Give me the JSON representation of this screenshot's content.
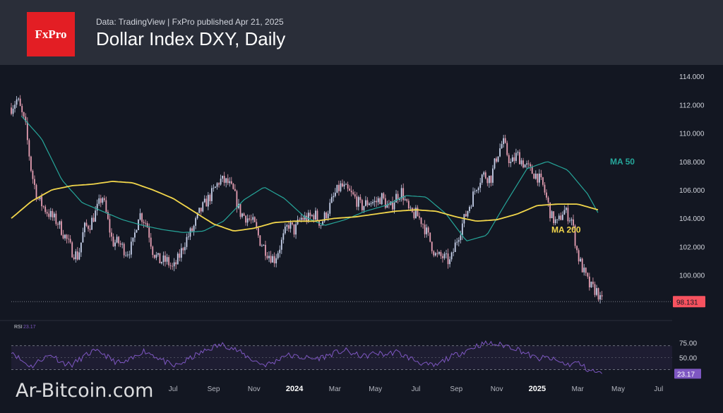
{
  "header": {
    "logo_text": "FxPro",
    "subtitle": "Data: TradingView  |  FxPro published Apr 21, 2025",
    "title": "Dollar Index DXY, Daily"
  },
  "watermark": "Ar-Bitcoin.com",
  "colors": {
    "background": "#131722",
    "header": "#2a2e39",
    "logo_red": "#e31e24",
    "candle_up": "#c8d2ec",
    "candle_down": "#e8a0b4",
    "ma50": "#26a69a",
    "ma200": "#f2d64b",
    "rsi": "#7e57c2",
    "last_price": "#f7525f"
  },
  "chart_data": [
    {
      "type": "line",
      "title": "Dollar Index DXY, Daily",
      "xlabel": "",
      "ylabel": "",
      "ylim": [
        97.5,
        114.5
      ],
      "y_ticks": [
        100.0,
        102.0,
        104.0,
        106.0,
        108.0,
        110.0,
        112.0,
        114.0
      ],
      "y_tick_labels": [
        "100.000",
        "102.000",
        "104.000",
        "106.000",
        "108.000",
        "110.000",
        "112.000",
        "114.000"
      ],
      "x_tick_labels": [
        "Jul",
        "Sep",
        "Nov",
        "2024",
        "Mar",
        "May",
        "Jul",
        "Sep",
        "Nov",
        "2025",
        "Mar",
        "May",
        "Jul"
      ],
      "x_tick_positions": [
        8.0,
        10.0,
        12.0,
        14.0,
        16.0,
        18.0,
        20.0,
        22.0,
        24.0,
        26.0,
        28.0,
        30.0,
        32.0
      ],
      "x_tick_bold": [
        "2024",
        "2025"
      ],
      "xlim": [
        0.0,
        32.6
      ],
      "grid": false,
      "last_price": 98.131,
      "last_price_label": "98.131",
      "series": [
        {
          "name": "DXY",
          "style": "candles",
          "x": [
            0.0,
            0.3,
            0.7,
            1.0,
            1.3,
            1.7,
            2.0,
            2.3,
            2.7,
            3.0,
            3.3,
            3.6,
            3.9,
            4.2,
            4.5,
            4.8,
            5.0,
            5.3,
            5.7,
            6.0,
            6.3,
            6.7,
            7.0,
            7.3,
            7.7,
            8.0,
            8.3,
            8.6,
            9.0,
            9.3,
            9.7,
            10.0,
            10.3,
            10.7,
            11.0,
            11.3,
            11.7,
            12.0,
            12.3,
            12.7,
            13.0,
            13.3,
            13.7,
            14.0,
            14.3,
            14.7,
            15.0,
            15.3,
            15.7,
            16.0,
            16.3,
            16.7,
            17.0,
            17.3,
            17.7,
            18.0,
            18.3,
            18.7,
            19.0,
            19.3,
            19.7,
            20.0,
            20.3,
            20.7,
            21.0,
            21.3,
            21.7,
            22.0,
            22.3,
            22.7,
            23.0,
            23.3,
            23.7,
            24.0,
            24.3,
            24.7,
            25.0,
            25.3,
            25.7,
            26.0,
            26.3,
            26.7,
            27.0,
            27.3,
            27.7,
            28.0,
            28.3,
            28.6,
            29.0,
            29.1,
            29.2
          ],
          "values": [
            111.8,
            112.4,
            110.5,
            107.2,
            105.4,
            104.6,
            104.1,
            103.7,
            102.6,
            101.7,
            101.3,
            103.3,
            103.6,
            104.5,
            105.6,
            103.6,
            102.3,
            102.3,
            101.6,
            102.1,
            104.4,
            103.6,
            101.7,
            101.0,
            101.0,
            100.4,
            101.3,
            102.4,
            103.3,
            104.4,
            105.3,
            105.9,
            106.7,
            106.5,
            105.8,
            104.4,
            104.0,
            103.6,
            102.4,
            101.5,
            101.1,
            102.1,
            103.6,
            103.1,
            104.0,
            104.0,
            104.3,
            103.6,
            104.7,
            105.7,
            106.3,
            105.8,
            105.4,
            104.8,
            105.2,
            105.1,
            105.5,
            104.6,
            105.5,
            105.9,
            104.3,
            104.3,
            103.8,
            102.4,
            101.3,
            101.3,
            100.9,
            102.4,
            103.6,
            105.1,
            106.3,
            107.1,
            106.8,
            108.4,
            109.4,
            107.8,
            108.5,
            107.9,
            107.3,
            107.0,
            106.2,
            104.1,
            103.6,
            104.6,
            103.9,
            101.4,
            100.2,
            99.2,
            98.8,
            98.2,
            98.131
          ]
        },
        {
          "name": "MA 50",
          "x": [
            0.5,
            1.5,
            2.5,
            3.5,
            4.5,
            5.5,
            6.5,
            7.5,
            8.5,
            9.5,
            10.5,
            11.5,
            12.5,
            13.5,
            14.5,
            15.5,
            16.5,
            17.5,
            18.5,
            19.5,
            20.5,
            21.5,
            22.5,
            23.5,
            24.5,
            25.5,
            26.5,
            27.5,
            28.5,
            29.0
          ],
          "values": [
            111.2,
            109.6,
            106.7,
            105.1,
            104.5,
            103.9,
            103.5,
            103.2,
            103.0,
            103.1,
            103.8,
            105.3,
            106.2,
            105.4,
            104.1,
            103.5,
            103.9,
            104.5,
            104.9,
            105.6,
            105.5,
            104.3,
            102.4,
            102.8,
            105.2,
            107.5,
            108.0,
            107.4,
            105.7,
            104.4
          ]
        },
        {
          "name": "MA 200",
          "x": [
            0.0,
            1.0,
            2.0,
            3.0,
            4.0,
            5.0,
            6.0,
            7.0,
            8.0,
            9.0,
            10.0,
            11.0,
            12.0,
            13.0,
            14.0,
            15.0,
            16.0,
            17.0,
            18.0,
            19.0,
            20.0,
            21.0,
            22.0,
            23.0,
            24.0,
            25.0,
            26.0,
            27.0,
            28.0,
            29.0
          ],
          "values": [
            104.0,
            105.2,
            106.0,
            106.3,
            106.4,
            106.6,
            106.5,
            106.0,
            105.4,
            104.5,
            103.6,
            103.1,
            103.3,
            103.7,
            103.8,
            103.8,
            104.0,
            104.1,
            104.3,
            104.5,
            104.6,
            104.5,
            104.1,
            103.8,
            103.9,
            104.3,
            104.9,
            105.0,
            105.0,
            104.6
          ]
        }
      ],
      "annotations": [
        {
          "text": "MA 50",
          "x": 29.6,
          "y": 108.0,
          "color": "#26a69a"
        },
        {
          "text": "MA 200",
          "x": 26.7,
          "y": 103.2,
          "color": "#f2d64b"
        }
      ]
    },
    {
      "type": "line",
      "title": "RSI 23.17",
      "title_label": "RSI",
      "title_value": "23.17",
      "ylim": [
        20,
        85
      ],
      "y_ticks": [
        50,
        75
      ],
      "y_tick_labels": [
        "50.00",
        "75.00"
      ],
      "band": [
        30,
        70
      ],
      "last_value_label": "23.17",
      "series": [
        {
          "name": "RSI",
          "x": [
            0.0,
            0.5,
            1.0,
            1.5,
            2.0,
            2.5,
            3.0,
            3.5,
            4.0,
            4.5,
            5.0,
            5.5,
            6.0,
            6.5,
            7.0,
            7.5,
            8.0,
            8.5,
            9.0,
            9.5,
            10.0,
            10.5,
            11.0,
            11.5,
            12.0,
            12.5,
            13.0,
            13.5,
            14.0,
            14.5,
            15.0,
            15.5,
            16.0,
            16.5,
            17.0,
            17.5,
            18.0,
            18.5,
            19.0,
            19.5,
            20.0,
            20.5,
            21.0,
            21.5,
            22.0,
            22.5,
            23.0,
            23.5,
            24.0,
            24.5,
            25.0,
            25.5,
            26.0,
            26.5,
            27.0,
            27.5,
            28.0,
            28.5,
            29.0,
            29.2
          ],
          "values": [
            62,
            45,
            35,
            48,
            55,
            42,
            38,
            50,
            60,
            58,
            45,
            40,
            48,
            62,
            55,
            45,
            35,
            42,
            52,
            60,
            68,
            72,
            65,
            55,
            45,
            38,
            42,
            55,
            52,
            50,
            48,
            52,
            58,
            62,
            55,
            52,
            58,
            55,
            60,
            52,
            45,
            38,
            36,
            48,
            55,
            62,
            70,
            74,
            72,
            70,
            65,
            56,
            48,
            50,
            44,
            38,
            42,
            30,
            25,
            23.17
          ]
        }
      ]
    }
  ]
}
